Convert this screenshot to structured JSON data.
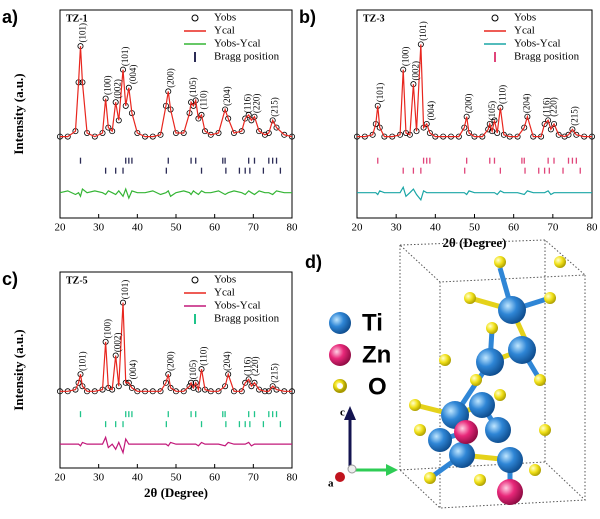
{
  "chart_data": [
    {
      "type": "line",
      "panel": "a)",
      "title": "TZ-1",
      "ylabel": "Intensity (a.u.)",
      "x": [
        20,
        22,
        24,
        24.8,
        25.3,
        25.8,
        27,
        29,
        31,
        31.8,
        32.5,
        33.5,
        34.4,
        35.2,
        36.3,
        37,
        37.8,
        38.6,
        40,
        42,
        44,
        46,
        47.4,
        48,
        48.6,
        50,
        52,
        53.5,
        53.9,
        54.5,
        55.1,
        55.8,
        56.6,
        57.5,
        59,
        61,
        62.7,
        63.5,
        65,
        67,
        67.9,
        68.8,
        69.5,
        70.3,
        71.5,
        73,
        74,
        75,
        76,
        78,
        80
      ],
      "xlim": [
        20,
        80
      ],
      "xticks": [
        20,
        30,
        40,
        50,
        60,
        70,
        80
      ],
      "ylim": [
        0,
        115
      ],
      "series": [
        {
          "name": "Yobs",
          "color": "#000000",
          "marker": "circle",
          "values": [
            45,
            45,
            48,
            75,
            95,
            75,
            47,
            45,
            47,
            66,
            50,
            48,
            64,
            54,
            82,
            62,
            72,
            58,
            47,
            45,
            45,
            46,
            62,
            70,
            60,
            47,
            47,
            58,
            64,
            62,
            65,
            55,
            57,
            48,
            46,
            47,
            60,
            55,
            47,
            48,
            55,
            57,
            54,
            56,
            48,
            46,
            47,
            54,
            50,
            46,
            45
          ]
        },
        {
          "name": "Ycal",
          "color": "#e8261e",
          "values": [
            45,
            45,
            48,
            75,
            95,
            75,
            47,
            45,
            47,
            66,
            50,
            48,
            64,
            54,
            82,
            62,
            72,
            58,
            47,
            45,
            45,
            46,
            62,
            70,
            60,
            47,
            47,
            58,
            64,
            62,
            65,
            55,
            57,
            48,
            46,
            47,
            60,
            55,
            47,
            48,
            55,
            57,
            54,
            56,
            48,
            46,
            47,
            54,
            50,
            46,
            45
          ]
        },
        {
          "name": "Yobs-Ycal",
          "color": "#35b535",
          "values": [
            14,
            15,
            13,
            14,
            12,
            16,
            14,
            15,
            14,
            13,
            15,
            14,
            13,
            15,
            12,
            16,
            11,
            15,
            14,
            14,
            15,
            13,
            14,
            15,
            12,
            14,
            15,
            14,
            13,
            15,
            14,
            13,
            15,
            14,
            14,
            15,
            13,
            14,
            15,
            14,
            13,
            15,
            14,
            13,
            15,
            14,
            14,
            13,
            15,
            14,
            14
          ]
        }
      ],
      "bragg": {
        "name": "Bragg position",
        "color": "#2b2b55",
        "positions": [
          [
            25.3,
            37.0,
            37.8,
            38.6,
            48.0,
            53.9,
            55.1,
            62.1,
            62.7,
            68.8,
            70.3,
            74.0,
            75.0,
            76.0
          ],
          [
            31.8,
            34.4,
            36.3,
            47.5,
            56.6,
            62.9,
            66.4,
            67.9,
            69.1,
            72.6,
            77.0
          ]
        ]
      },
      "annotations": [
        {
          "text": "(101)",
          "x": 25.3,
          "y": 97
        },
        {
          "text": "(100)",
          "x": 31.8,
          "y": 68
        },
        {
          "text": "(002)",
          "x": 34.4,
          "y": 66
        },
        {
          "text": "(101)",
          "x": 36.3,
          "y": 84
        },
        {
          "text": "(004)",
          "x": 38.4,
          "y": 74
        },
        {
          "text": "(200)",
          "x": 48,
          "y": 72
        },
        {
          "text": "(105)",
          "x": 53.9,
          "y": 67
        },
        {
          "text": "(110)",
          "x": 56.6,
          "y": 60
        },
        {
          "text": "(204)",
          "x": 62.7,
          "y": 62
        },
        {
          "text": "(116)",
          "x": 67.9,
          "y": 58
        },
        {
          "text": "(220)",
          "x": 70.3,
          "y": 58
        },
        {
          "text": "(215)",
          "x": 75,
          "y": 56
        }
      ]
    },
    {
      "type": "line",
      "panel": "b)",
      "title": "TZ-3",
      "xlabel": "2θ (Degree)",
      "x": [
        20,
        22,
        24,
        24.8,
        25.3,
        25.8,
        27,
        29,
        31,
        31.8,
        32.5,
        33.5,
        34.4,
        35.2,
        36.3,
        37,
        37.8,
        38.6,
        40,
        42,
        44,
        46,
        47.4,
        48,
        48.6,
        50,
        52,
        53.5,
        53.9,
        54.5,
        55.1,
        55.8,
        56.6,
        57.5,
        59,
        61,
        62.7,
        63.5,
        65,
        67,
        67.9,
        68.8,
        69.5,
        70.3,
        71.5,
        73,
        74,
        75,
        76,
        78,
        80
      ],
      "xlim": [
        20,
        80
      ],
      "xticks": [
        20,
        30,
        40,
        50,
        60,
        70,
        80
      ],
      "ylim": [
        0,
        115
      ],
      "series": [
        {
          "name": "Yobs",
          "color": "#000000",
          "marker": "circle",
          "values": [
            45,
            45,
            46,
            52,
            62,
            50,
            45,
            45,
            46,
            82,
            47,
            46,
            74,
            48,
            96,
            50,
            52,
            47,
            45,
            45,
            45,
            45,
            50,
            56,
            47,
            45,
            45,
            49,
            52,
            48,
            54,
            47,
            61,
            46,
            45,
            45,
            50,
            56,
            45,
            45,
            52,
            54,
            49,
            52,
            46,
            45,
            46,
            49,
            46,
            45,
            45
          ]
        },
        {
          "name": "Ycal",
          "color": "#e8261e",
          "values": [
            45,
            45,
            46,
            52,
            62,
            50,
            45,
            45,
            46,
            82,
            47,
            46,
            74,
            48,
            96,
            50,
            52,
            47,
            45,
            45,
            45,
            45,
            50,
            56,
            47,
            45,
            45,
            49,
            52,
            48,
            54,
            47,
            61,
            46,
            45,
            45,
            50,
            56,
            45,
            45,
            52,
            54,
            49,
            52,
            46,
            45,
            46,
            49,
            46,
            45,
            45
          ]
        },
        {
          "name": "Yobs-Ycal",
          "color": "#1aa6a6",
          "values": [
            14,
            14,
            14,
            14,
            13,
            15,
            14,
            14,
            14,
            17,
            12,
            14,
            16,
            13,
            10,
            15,
            14,
            14,
            14,
            14,
            14,
            14,
            14,
            13,
            15,
            14,
            14,
            14,
            14,
            14,
            14,
            13,
            15,
            14,
            14,
            14,
            13,
            15,
            14,
            14,
            14,
            15,
            13,
            14,
            14,
            14,
            14,
            14,
            14,
            14,
            14
          ]
        }
      ],
      "bragg": {
        "name": "Bragg position",
        "color": "#e0457a",
        "positions": [
          [
            25.3,
            37.0,
            37.8,
            38.6,
            48.0,
            53.9,
            55.1,
            62.1,
            62.7,
            68.8,
            70.3,
            74.0,
            75.0,
            76.0
          ],
          [
            31.8,
            34.4,
            36.3,
            47.5,
            56.6,
            62.9,
            66.4,
            67.9,
            69.1,
            72.6,
            77.0
          ]
        ]
      },
      "annotations": [
        {
          "text": "(101)",
          "x": 25.3,
          "y": 64
        },
        {
          "text": "(100)",
          "x": 31.8,
          "y": 84
        },
        {
          "text": "(002)",
          "x": 34.4,
          "y": 76
        },
        {
          "text": "(101)",
          "x": 36.3,
          "y": 98
        },
        {
          "text": "(004)",
          "x": 38.4,
          "y": 54
        },
        {
          "text": "(200)",
          "x": 48,
          "y": 58
        },
        {
          "text": "(105)",
          "x": 53.9,
          "y": 54
        },
        {
          "text": "(110)",
          "x": 56.6,
          "y": 63
        },
        {
          "text": "(204)",
          "x": 62.7,
          "y": 58
        },
        {
          "text": "(116)",
          "x": 67.9,
          "y": 56
        },
        {
          "text": "(220)",
          "x": 69.7,
          "y": 56
        },
        {
          "text": "(215)",
          "x": 75,
          "y": 51
        }
      ]
    },
    {
      "type": "line",
      "panel": "c)",
      "title": "TZ-5",
      "xlabel": "2θ (Degree)",
      "ylabel": "Intensity (a.u.)",
      "x": [
        20,
        22,
        24,
        24.8,
        25.3,
        25.8,
        27,
        29,
        31,
        31.8,
        32.5,
        33.5,
        34.4,
        35.2,
        36.3,
        37,
        37.8,
        38.6,
        40,
        42,
        44,
        46,
        47.4,
        48,
        48.6,
        50,
        52,
        53.5,
        53.9,
        54.5,
        55.1,
        55.8,
        56.6,
        57.5,
        59,
        61,
        62.7,
        63.5,
        65,
        67,
        67.9,
        68.8,
        69.5,
        70.3,
        71.5,
        73,
        74,
        75,
        76,
        78,
        80
      ],
      "xlim": [
        20,
        80
      ],
      "xticks": [
        20,
        30,
        40,
        50,
        60,
        70,
        80
      ],
      "ylim": [
        0,
        115
      ],
      "series": [
        {
          "name": "Yobs",
          "color": "#000000",
          "marker": "circle",
          "values": [
            45,
            45,
            46,
            50,
            55,
            48,
            45,
            45,
            46,
            74,
            47,
            46,
            66,
            48,
            97,
            50,
            50,
            47,
            45,
            45,
            45,
            45,
            50,
            55,
            47,
            45,
            45,
            48,
            50,
            47,
            50,
            46,
            58,
            46,
            45,
            45,
            48,
            55,
            45,
            45,
            50,
            52,
            48,
            50,
            46,
            45,
            45,
            48,
            46,
            45,
            45
          ]
        },
        {
          "name": "Ycal",
          "color": "#e8261e",
          "values": [
            45,
            45,
            46,
            50,
            55,
            48,
            45,
            45,
            46,
            74,
            47,
            46,
            66,
            48,
            97,
            50,
            50,
            47,
            45,
            45,
            45,
            45,
            50,
            55,
            47,
            45,
            45,
            48,
            50,
            47,
            50,
            46,
            58,
            46,
            45,
            45,
            48,
            55,
            45,
            45,
            50,
            52,
            48,
            50,
            46,
            45,
            45,
            48,
            46,
            45,
            45
          ]
        },
        {
          "name": "Yobs-Ycal",
          "color": "#c2187a",
          "values": [
            14,
            14,
            14,
            14,
            13,
            15,
            14,
            14,
            14,
            18,
            12,
            14,
            11,
            15,
            9,
            17,
            14,
            14,
            14,
            14,
            14,
            14,
            14,
            13,
            15,
            14,
            14,
            14,
            14,
            14,
            14,
            13,
            15,
            14,
            14,
            14,
            13,
            15,
            14,
            14,
            14,
            15,
            13,
            14,
            14,
            14,
            14,
            14,
            14,
            14,
            14
          ]
        }
      ],
      "bragg": {
        "name": "Bragg position",
        "color": "#1fc48a",
        "positions": [
          [
            25.3,
            37.0,
            37.8,
            38.6,
            48.0,
            53.9,
            55.1,
            62.1,
            62.7,
            68.8,
            70.3,
            74.0,
            75.0,
            76.0
          ],
          [
            31.8,
            34.4,
            36.3,
            47.5,
            56.6,
            62.9,
            66.4,
            67.9,
            69.1,
            72.6,
            77.0
          ]
        ]
      },
      "annotations": [
        {
          "text": "(101)",
          "x": 25.3,
          "y": 57
        },
        {
          "text": "(100)",
          "x": 31.8,
          "y": 76
        },
        {
          "text": "(002)",
          "x": 34.4,
          "y": 68
        },
        {
          "text": "(101)",
          "x": 36.3,
          "y": 99
        },
        {
          "text": "(004)",
          "x": 38.4,
          "y": 52
        },
        {
          "text": "(200)",
          "x": 48,
          "y": 57
        },
        {
          "text": "(105)",
          "x": 53.9,
          "y": 52
        },
        {
          "text": "(110)",
          "x": 56.6,
          "y": 60
        },
        {
          "text": "(204)",
          "x": 62.7,
          "y": 57
        },
        {
          "text": "(116)",
          "x": 67.9,
          "y": 54
        },
        {
          "text": "(220)",
          "x": 69.9,
          "y": 54
        },
        {
          "text": "(215)",
          "x": 75,
          "y": 50
        }
      ]
    }
  ],
  "diagram": {
    "panel": "d)",
    "legend": [
      "Ti",
      "Zn",
      "O"
    ],
    "axes": [
      "c",
      "a"
    ]
  }
}
